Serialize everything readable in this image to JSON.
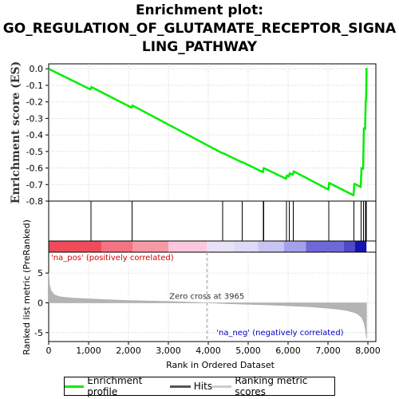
{
  "chart_data": {
    "type": "line",
    "title_lines": [
      "Enrichment plot:",
      "GO_REGULATION_OF_GLUTAMATE_RECEPTOR_SIGNA",
      "LING_PATHWAY"
    ],
    "top_panel": {
      "ylabel": "Enrichment score (ES)",
      "ylim": [
        -0.8,
        0.03
      ],
      "yticks": [
        "0.0",
        "-0.1",
        "-0.2",
        "-0.3",
        "-0.4",
        "-0.5",
        "-0.6",
        "-0.7",
        "-0.8"
      ],
      "ytick_values": [
        0.0,
        -0.1,
        -0.2,
        -0.3,
        -0.4,
        -0.5,
        -0.6,
        -0.7,
        -0.8
      ],
      "series": [
        {
          "name": "Enrichment profile",
          "color": "#00ee00",
          "x": [
            0,
            1050,
            1070,
            2080,
            2100,
            4350,
            4370,
            4840,
            4860,
            5370,
            5390,
            5950,
            5970,
            6020,
            6040,
            6120,
            6140,
            7010,
            7030,
            7640,
            7660,
            7820,
            7840,
            7880,
            7900,
            7930,
            7945,
            7955,
            7965
          ],
          "y": [
            0.0,
            -0.125,
            -0.11,
            -0.235,
            -0.222,
            -0.51,
            -0.51,
            -0.565,
            -0.565,
            -0.625,
            -0.6,
            -0.665,
            -0.645,
            -0.652,
            -0.632,
            -0.64,
            -0.62,
            -0.73,
            -0.69,
            -0.765,
            -0.695,
            -0.715,
            -0.6,
            -0.605,
            -0.36,
            -0.365,
            -0.19,
            -0.19,
            0.005
          ]
        }
      ]
    },
    "hits": {
      "name": "Hits",
      "positions": [
        1060,
        2090,
        4360,
        4850,
        5380,
        5390,
        5960,
        6030,
        6130,
        7020,
        7650,
        7830,
        7890,
        7940,
        7960
      ]
    },
    "ranking": {
      "name": "Ranking metric scores",
      "ylabel": "Ranked list metric (PreRanked)",
      "ylim": [
        -6.5,
        8.5
      ],
      "yticks": [
        "5",
        "0",
        "-5"
      ],
      "ytick_values": [
        5,
        0,
        -5
      ],
      "profile_x": [
        0,
        20,
        60,
        150,
        300,
        600,
        1000,
        1500,
        2000,
        2500,
        3000,
        3500,
        3965,
        4500,
        5000,
        5500,
        6000,
        6500,
        7000,
        7300,
        7500,
        7650,
        7750,
        7850,
        7900,
        7940,
        7965
      ],
      "profile_y": [
        5.0,
        3.0,
        2.0,
        1.3,
        1.0,
        0.8,
        0.65,
        0.5,
        0.4,
        0.3,
        0.22,
        0.12,
        0.0,
        -0.15,
        -0.25,
        -0.35,
        -0.5,
        -0.65,
        -0.9,
        -1.1,
        -1.35,
        -1.6,
        -1.9,
        -2.5,
        -3.3,
        -4.5,
        -6.0
      ],
      "zero_cross": 3965,
      "zero_cross_label": "Zero cross at 3965",
      "pos_label": "'na_pos' (positively correlated)",
      "neg_label": "'na_neg' (negatively correlated)",
      "pos_color": "#dd0000",
      "neg_color": "#0000cc"
    },
    "color_bar": [
      {
        "from": 0,
        "to": 1320,
        "color": "#f04b5a"
      },
      {
        "from": 1320,
        "to": 2100,
        "color": "#f57382"
      },
      {
        "from": 2100,
        "to": 3000,
        "color": "#f799a4"
      },
      {
        "from": 3000,
        "to": 3965,
        "color": "#fbc6de"
      },
      {
        "from": 3965,
        "to": 4650,
        "color": "#e8e2f6"
      },
      {
        "from": 4650,
        "to": 5250,
        "color": "#dcdaf6"
      },
      {
        "from": 5250,
        "to": 5900,
        "color": "#c7c5f2"
      },
      {
        "from": 5900,
        "to": 6450,
        "color": "#a4a0ea"
      },
      {
        "from": 6450,
        "to": 7400,
        "color": "#6f68d8"
      },
      {
        "from": 7400,
        "to": 7680,
        "color": "#5048c8"
      },
      {
        "from": 7680,
        "to": 7965,
        "color": "#1414b0"
      }
    ],
    "xaxis": {
      "label": "Rank in Ordered Dataset",
      "xlim": [
        0,
        8200
      ],
      "ticks": [
        "0",
        "1,000",
        "2,000",
        "3,000",
        "4,000",
        "5,000",
        "6,000",
        "7,000",
        "8,000"
      ],
      "tick_values": [
        0,
        1000,
        2000,
        3000,
        4000,
        5000,
        6000,
        7000,
        8000
      ]
    },
    "legend": {
      "placement": "bottom",
      "items": [
        {
          "label": "Enrichment profile",
          "color": "#00ee00"
        },
        {
          "label": "Hits",
          "color": "#555555"
        },
        {
          "label": "Ranking metric scores",
          "color": "#cccccc"
        }
      ]
    }
  }
}
